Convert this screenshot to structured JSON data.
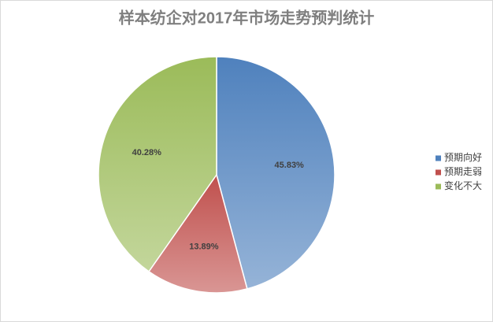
{
  "chart_data": {
    "type": "pie",
    "title": "样本纺企对2017年市场走势预判统计",
    "categories": [
      "预期向好",
      "预期走弱",
      "变化不大"
    ],
    "values": [
      45.83,
      13.89,
      40.28
    ],
    "value_labels": [
      "45.83%",
      "13.89%",
      "40.28%"
    ],
    "colors": [
      "#4f81bd",
      "#c0504d",
      "#9bbb59"
    ],
    "legend": "right"
  }
}
